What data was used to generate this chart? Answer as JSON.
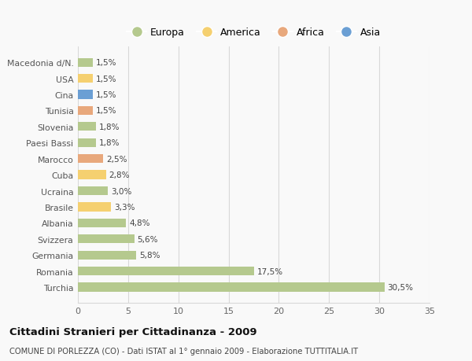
{
  "categories": [
    "Macedonia d/N.",
    "USA",
    "Cina",
    "Tunisia",
    "Slovenia",
    "Paesi Bassi",
    "Marocco",
    "Cuba",
    "Ucraina",
    "Brasile",
    "Albania",
    "Svizzera",
    "Germania",
    "Romania",
    "Turchia"
  ],
  "values": [
    1.5,
    1.5,
    1.5,
    1.5,
    1.8,
    1.8,
    2.5,
    2.8,
    3.0,
    3.3,
    4.8,
    5.6,
    5.8,
    17.5,
    30.5
  ],
  "labels": [
    "1,5%",
    "1,5%",
    "1,5%",
    "1,5%",
    "1,8%",
    "1,8%",
    "2,5%",
    "2,8%",
    "3,0%",
    "3,3%",
    "4,8%",
    "5,6%",
    "5,8%",
    "17,5%",
    "30,5%"
  ],
  "colors": [
    "#b5c98e",
    "#f5d070",
    "#6b9fd4",
    "#e8a87c",
    "#b5c98e",
    "#b5c98e",
    "#e8a87c",
    "#f5d070",
    "#b5c98e",
    "#f5d070",
    "#b5c98e",
    "#b5c98e",
    "#b5c98e",
    "#b5c98e",
    "#b5c98e"
  ],
  "legend_labels": [
    "Europa",
    "America",
    "Africa",
    "Asia"
  ],
  "legend_colors": [
    "#b5c98e",
    "#f5d070",
    "#e8a87c",
    "#6b9fd4"
  ],
  "title": "Cittadini Stranieri per Cittadinanza - 2009",
  "subtitle": "COMUNE DI PORLEZZA (CO) - Dati ISTAT al 1° gennaio 2009 - Elaborazione TUTTITALIA.IT",
  "xlim": [
    0,
    35
  ],
  "xticks": [
    0,
    5,
    10,
    15,
    20,
    25,
    30,
    35
  ],
  "background_color": "#f9f9f9",
  "grid_color": "#d8d8d8",
  "bar_height": 0.55
}
